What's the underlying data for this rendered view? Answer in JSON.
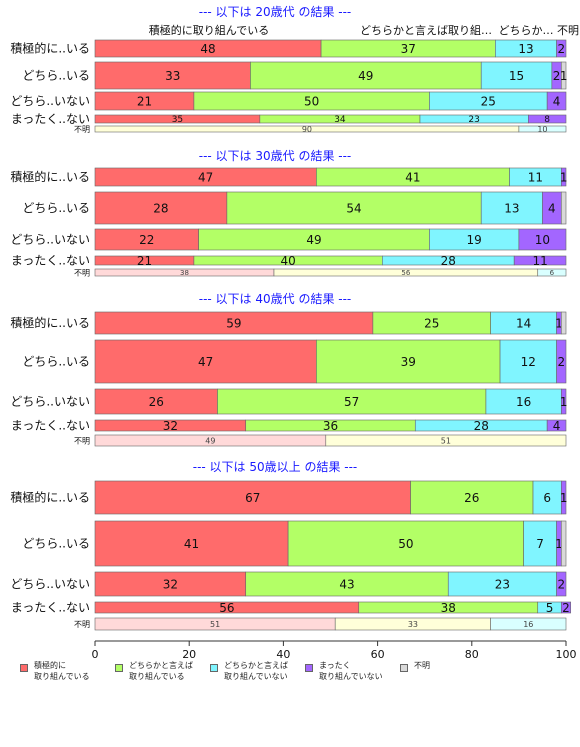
{
  "chart_data": {
    "type": "bar",
    "orientation": "horizontal-stacked-percent",
    "xlim": [
      0,
      100
    ],
    "x_ticks": [
      "0",
      "20",
      "40",
      "60",
      "80",
      "100"
    ],
    "top_header_labels": [
      "積極的に取り組んでいる",
      "どちらかと言えば取り組…",
      "どちらか…",
      "不明"
    ],
    "series": [
      {
        "name": "積極的に\n取り組んでいる",
        "color": "#ff6b6b"
      },
      {
        "name": "どちらかと言えば\n取り組んでいる",
        "color": "#b3ff66"
      },
      {
        "name": "どちらかと言えば\n取り組んでいない",
        "color": "#80f5ff"
      },
      {
        "name": "まったく\n取り組んでいない",
        "color": "#a366ff"
      },
      {
        "name": "不明",
        "color": "#d9d9d9"
      }
    ],
    "panels": [
      {
        "title": "--- 以下は 20歳代 の結果 ---",
        "rows": [
          {
            "label": "積極的に..いる",
            "values": [
              48,
              37,
              13,
              2,
              0
            ]
          },
          {
            "label": "どちら..いる",
            "values": [
              33,
              49,
              15,
              2,
              1
            ]
          },
          {
            "label": "どちら..いない",
            "values": [
              21,
              50,
              25,
              4,
              0
            ]
          },
          {
            "label": "まったく..ない",
            "values": [
              35,
              34,
              23,
              8,
              0
            ]
          },
          {
            "label": "不明",
            "values": [
              0,
              90,
              10,
              0,
              0
            ]
          }
        ]
      },
      {
        "title": "--- 以下は 30歳代 の結果 ---",
        "rows": [
          {
            "label": "積極的に..いる",
            "values": [
              47,
              41,
              11,
              1,
              0
            ]
          },
          {
            "label": "どちら..いる",
            "values": [
              28,
              54,
              13,
              4,
              0
            ]
          },
          {
            "label": "どちら..いない",
            "values": [
              22,
              49,
              19,
              10,
              0
            ]
          },
          {
            "label": "まったく..ない",
            "values": [
              21,
              40,
              28,
              11,
              0
            ]
          },
          {
            "label": "不明",
            "values": [
              38,
              56,
              6,
              0,
              0
            ]
          }
        ]
      },
      {
        "title": "--- 以下は 40歳代 の結果 ---",
        "rows": [
          {
            "label": "積極的に..いる",
            "values": [
              59,
              25,
              14,
              1,
              0
            ]
          },
          {
            "label": "どちら..いる",
            "values": [
              47,
              39,
              12,
              2,
              0
            ]
          },
          {
            "label": "どちら..いない",
            "values": [
              26,
              57,
              16,
              1,
              0
            ]
          },
          {
            "label": "まったく..ない",
            "values": [
              32,
              36,
              28,
              4,
              0
            ]
          },
          {
            "label": "不明",
            "values": [
              49,
              51,
              0,
              0,
              0
            ]
          }
        ]
      },
      {
        "title": "--- 以下は 50歳以上 の結果 ---",
        "rows": [
          {
            "label": "積極的に..いる",
            "values": [
              67,
              26,
              6,
              1,
              0
            ]
          },
          {
            "label": "どちら..いる",
            "values": [
              41,
              50,
              7,
              1,
              0
            ]
          },
          {
            "label": "どちら..いない",
            "values": [
              32,
              43,
              23,
              2,
              0
            ]
          },
          {
            "label": "まったく..ない",
            "values": [
              56,
              38,
              5,
              2,
              0
            ]
          },
          {
            "label": "不明",
            "values": [
              51,
              33,
              16,
              0,
              0
            ]
          }
        ]
      }
    ]
  }
}
